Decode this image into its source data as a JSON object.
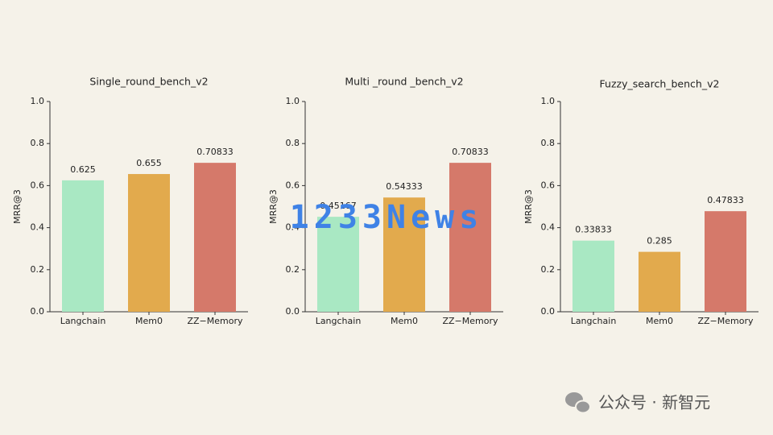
{
  "chart_data": [
    {
      "type": "bar",
      "title": "Single_round_bench_v2",
      "ylabel": "MRR@3",
      "categories": [
        "Langchain",
        "Mem0",
        "ZZ−Memory"
      ],
      "values": [
        0.625,
        0.655,
        0.70833
      ],
      "colors": [
        "#a9e8c3",
        "#e2aa4d",
        "#d5796a"
      ],
      "ylim": [
        0,
        1
      ],
      "yticks": [
        {
          "value": 0,
          "label": "0.0"
        },
        0.2,
        0.4,
        0.6,
        0.8,
        {
          "value": 1,
          "label": "1.0"
        }
      ]
    },
    {
      "type": "bar",
      "title": "Multi _round _bench_v2",
      "ylabel": "MRR@3",
      "categories": [
        "Langchain",
        "Mem0",
        "ZZ−Memory"
      ],
      "values": [
        0.45167,
        0.54333,
        0.70833
      ],
      "colors": [
        "#a9e8c3",
        "#e2aa4d",
        "#d5796a"
      ],
      "ylim": [
        0,
        1
      ],
      "yticks": [
        {
          "value": 0,
          "label": "0.0"
        },
        0.2,
        0.4,
        0.6,
        0.8,
        {
          "value": 1,
          "label": "1.0"
        }
      ]
    },
    {
      "type": "bar",
      "title": "Fuzzy_search_bench_v2",
      "ylabel": "MRR@3",
      "categories": [
        "Langchain",
        "Mem0",
        "ZZ−Memory"
      ],
      "values": [
        0.33833,
        0.285,
        0.47833
      ],
      "colors": [
        "#a9e8c3",
        "#e2aa4d",
        "#d5796a"
      ],
      "ylim": [
        0,
        1
      ],
      "yticks": [
        {
          "value": 0,
          "label": "0.0"
        },
        0.2,
        0.4,
        0.6,
        0.8,
        {
          "value": 1,
          "label": "1.0"
        }
      ]
    }
  ],
  "watermark": "1233News",
  "footer": "公众号 · 新智元"
}
